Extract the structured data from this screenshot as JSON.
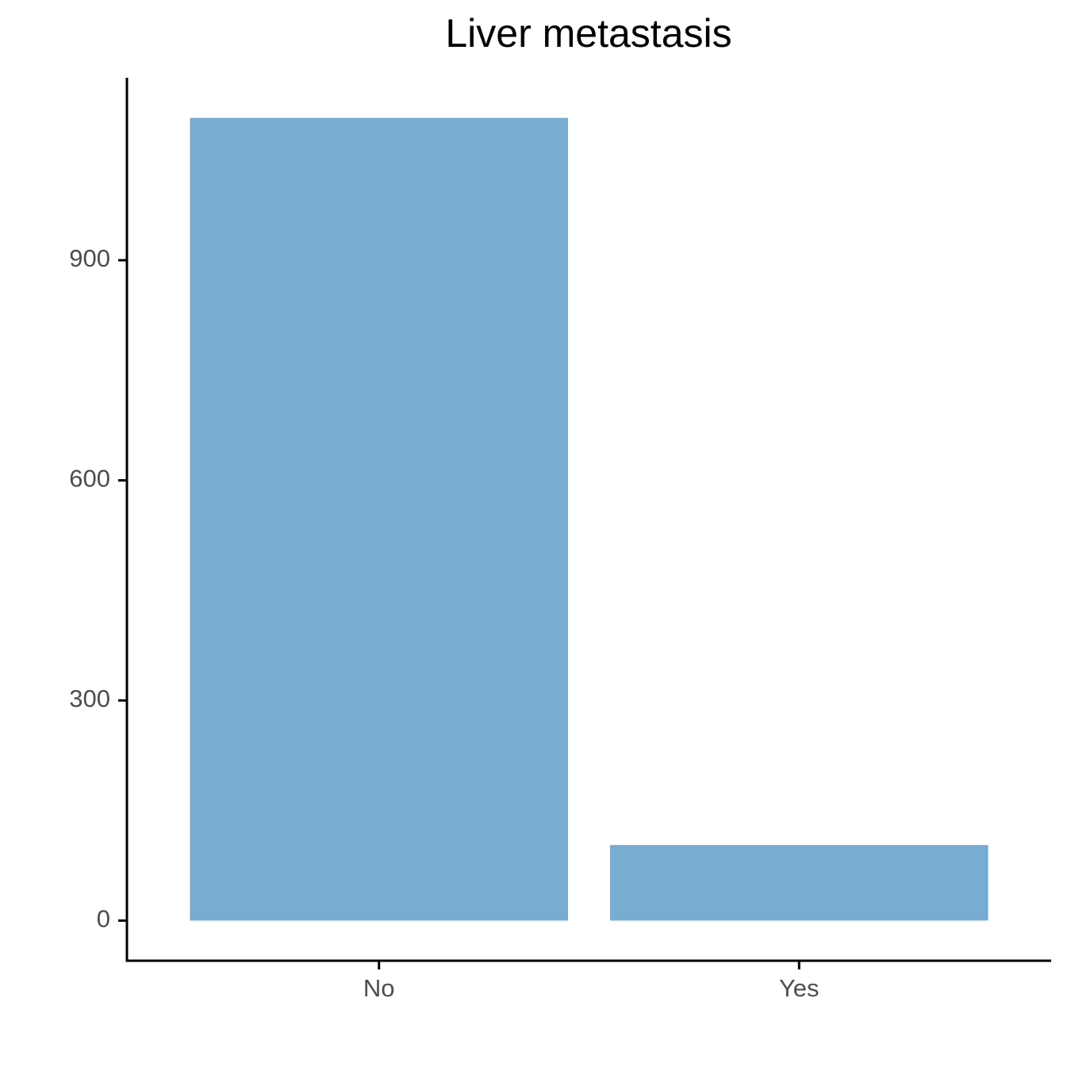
{
  "chart_data": {
    "type": "bar",
    "title": "Liver metastasis",
    "categories": [
      "No",
      "Yes"
    ],
    "values": [
      1094,
      103
    ],
    "color": "#78acd1",
    "ylim": [
      -54.7,
      1148.7
    ],
    "yticks": [
      0,
      300,
      600,
      900
    ],
    "grid": false
  }
}
